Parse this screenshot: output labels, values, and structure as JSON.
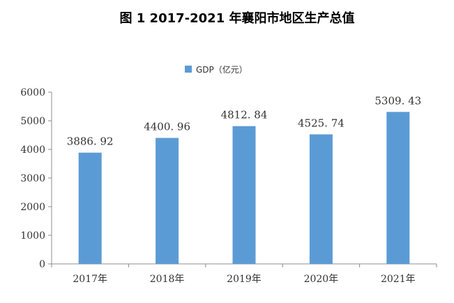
{
  "chart_data": {
    "type": "bar",
    "title": "图 1   2017-2021 年襄阳市地区生产总值",
    "categories": [
      "2017年",
      "2018年",
      "2019年",
      "2020年",
      "2021年"
    ],
    "series": [
      {
        "name": "GDP（亿元）",
        "values": [
          3886.92,
          4400.96,
          4812.84,
          4525.74,
          5309.43
        ],
        "data_labels": [
          "3886. 92",
          "4400. 96",
          "4812. 84",
          "4525. 74",
          "5309. 43"
        ],
        "color": "#5B9BD5"
      }
    ],
    "ylim": [
      0,
      6000
    ],
    "yticks": [
      0,
      1000,
      2000,
      3000,
      4000,
      5000,
      6000
    ],
    "xlabel": "",
    "ylabel": "",
    "grid": false,
    "legend_position": "top-center"
  }
}
